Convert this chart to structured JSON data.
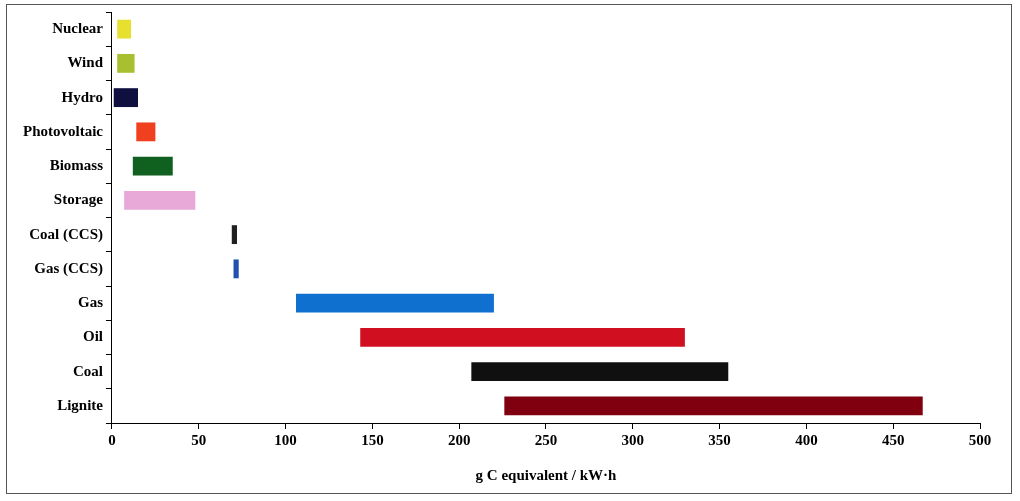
{
  "chart_data": {
    "type": "bar",
    "orientation": "horizontal",
    "categories": [
      "Nuclear",
      "Wind",
      "Hydro",
      "Photovoltaic",
      "Biomass",
      "Storage",
      "Coal (CCS)",
      "Gas (CCS)",
      "Gas",
      "Oil",
      "Coal",
      "Lignite"
    ],
    "base": [
      3,
      3,
      1,
      14,
      12,
      7,
      69,
      70,
      106,
      143,
      207,
      226
    ],
    "values": [
      8,
      10,
      14,
      11,
      23,
      41,
      3,
      3,
      114,
      187,
      148,
      241
    ],
    "colors": [
      "#e8e030",
      "#a8c030",
      "#101040",
      "#f04020",
      "#106020",
      "#e8a8d8",
      "#202020",
      "#2050b0",
      "#1070d0",
      "#d01020",
      "#101010",
      "#800010"
    ],
    "xlim": [
      0,
      500
    ],
    "xticks": [
      0,
      50,
      100,
      150,
      200,
      250,
      300,
      350,
      400,
      450,
      500
    ],
    "xlabel": "g C equivalent / kW·h",
    "grid": false,
    "legend": false
  }
}
